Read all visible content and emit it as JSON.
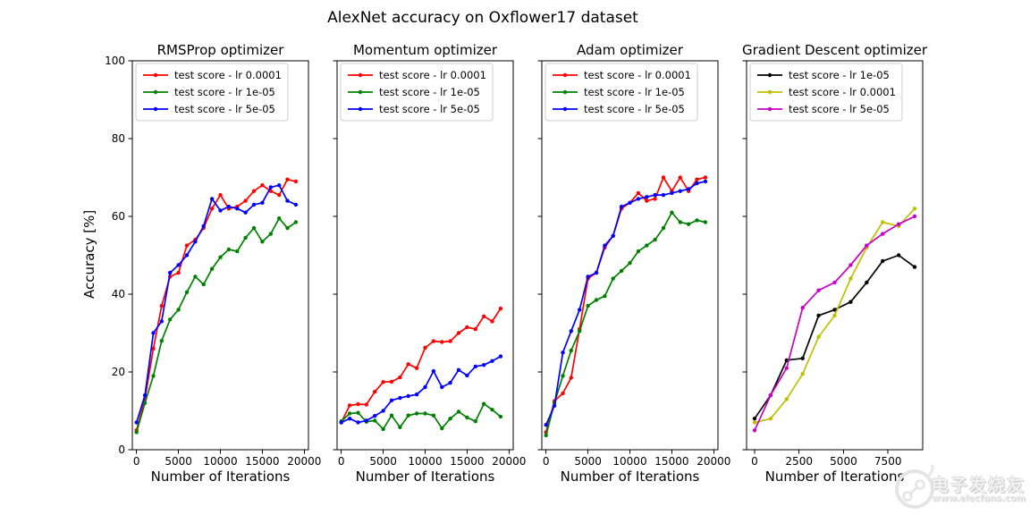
{
  "figure": {
    "title": "AlexNet accuracy on Oxflower17 dataset",
    "ylabel": "Accuracy [%]",
    "watermark": {
      "brand": "电子发烧友",
      "url": "www.elecfans.com"
    }
  },
  "chart_data": [
    {
      "type": "line",
      "title": "RMSProp optimizer",
      "xlabel": "Number of Iterations",
      "ylabel": "Accuracy [%]",
      "xlim": [
        -500,
        20500
      ],
      "ylim": [
        0,
        100
      ],
      "xticks": [
        0,
        5000,
        10000,
        15000,
        20000
      ],
      "yticks": [
        0,
        20,
        40,
        60,
        80,
        100
      ],
      "show_ytick_labels": true,
      "legend_position": "upper-left",
      "grid": false,
      "x": [
        0,
        1000,
        2000,
        3000,
        4000,
        5000,
        6000,
        7000,
        8000,
        9000,
        10000,
        11000,
        12000,
        13000,
        14000,
        15000,
        16000,
        17000,
        18000,
        19000
      ],
      "series": [
        {
          "name": "test score - lr 0.0001",
          "color": "#ff0000",
          "values": [
            5,
            13,
            26,
            37,
            44.5,
            45.5,
            52.5,
            54,
            57,
            62,
            65.5,
            62,
            62.5,
            64,
            66.5,
            68,
            66.5,
            65.5,
            69.5,
            69
          ]
        },
        {
          "name": "test score - lr 1e-05",
          "color": "#008000",
          "values": [
            4.5,
            12,
            19,
            28,
            33.5,
            36,
            40.5,
            44.5,
            42.5,
            46.5,
            49.5,
            51.5,
            51,
            54.5,
            57,
            53.5,
            55.5,
            59.5,
            57,
            58.5
          ]
        },
        {
          "name": "test score - lr 5e-05",
          "color": "#0000ff",
          "values": [
            7,
            14,
            30,
            33,
            45.5,
            47.5,
            50,
            53.5,
            57.5,
            64.5,
            61.5,
            62.5,
            62,
            61,
            63,
            63.5,
            67.5,
            68,
            64,
            63
          ]
        }
      ]
    },
    {
      "type": "line",
      "title": "Momentum optimizer",
      "xlabel": "Number of Iterations",
      "ylabel": "Accuracy [%]",
      "xlim": [
        -500,
        20500
      ],
      "ylim": [
        0,
        100
      ],
      "xticks": [
        0,
        5000,
        10000,
        15000,
        20000
      ],
      "yticks": [
        0,
        20,
        40,
        60,
        80,
        100
      ],
      "show_ytick_labels": false,
      "legend_position": "upper-left",
      "grid": false,
      "x": [
        0,
        1000,
        2000,
        3000,
        4000,
        5000,
        6000,
        7000,
        8000,
        9000,
        10000,
        11000,
        12000,
        13000,
        14000,
        15000,
        16000,
        17000,
        18000,
        19000
      ],
      "series": [
        {
          "name": "test score - lr 0.0001",
          "color": "#ff0000",
          "values": [
            7,
            11.4,
            11.7,
            11.6,
            14.9,
            17.4,
            17.5,
            18.6,
            22,
            21,
            26.2,
            27.9,
            27.7,
            27.9,
            30,
            31.5,
            31,
            34.3,
            33,
            36.3
          ]
        },
        {
          "name": "test score - lr 1e-05",
          "color": "#008000",
          "values": [
            7.3,
            9.3,
            9.5,
            7.2,
            7.5,
            5.3,
            8.8,
            5.8,
            8.8,
            9.3,
            9.3,
            8.8,
            5.5,
            8,
            9.8,
            8.3,
            7.3,
            11.8,
            10.3,
            8.5
          ]
        },
        {
          "name": "test score - lr 5e-05",
          "color": "#0000ff",
          "values": [
            7,
            8,
            7,
            7.5,
            8.7,
            10,
            12.7,
            13.3,
            13.8,
            14.2,
            16.1,
            20.2,
            16.1,
            17.2,
            20.5,
            19.1,
            21.4,
            21.8,
            22.8,
            24
          ]
        }
      ]
    },
    {
      "type": "line",
      "title": "Adam optimizer",
      "xlabel": "Number of Iterations",
      "ylabel": "Accuracy [%]",
      "xlim": [
        -500,
        20500
      ],
      "ylim": [
        0,
        100
      ],
      "xticks": [
        0,
        5000,
        10000,
        15000,
        20000
      ],
      "yticks": [
        0,
        20,
        40,
        60,
        80,
        100
      ],
      "show_ytick_labels": false,
      "legend_position": "upper-left",
      "grid": false,
      "x": [
        0,
        1000,
        2000,
        3000,
        4000,
        5000,
        6000,
        7000,
        8000,
        9000,
        10000,
        11000,
        12000,
        13000,
        14000,
        15000,
        16000,
        17000,
        18000,
        19000
      ],
      "series": [
        {
          "name": "test score - lr 0.0001",
          "color": "#ff0000",
          "values": [
            4.5,
            12.5,
            14.5,
            18.5,
            31,
            44,
            45.5,
            52,
            55,
            62,
            63.5,
            66,
            64,
            64.5,
            70,
            66.5,
            70,
            66.5,
            69.5,
            70
          ]
        },
        {
          "name": "test score - lr 1e-05",
          "color": "#008000",
          "values": [
            3.7,
            12,
            19,
            25.5,
            30.5,
            37,
            38.5,
            39.5,
            44,
            46,
            48,
            51,
            52.5,
            54,
            57,
            61,
            58.5,
            58,
            59,
            58.5
          ]
        },
        {
          "name": "test score - lr 5e-05",
          "color": "#0000ff",
          "values": [
            6.4,
            11.3,
            25,
            30.5,
            36,
            44.5,
            45.5,
            52.5,
            55,
            62.5,
            63.5,
            64.5,
            65,
            65.5,
            65.5,
            66,
            66.5,
            67,
            68.5,
            69
          ]
        }
      ]
    },
    {
      "type": "line",
      "title": "Gradient Descent optimizer",
      "xlabel": "Number of Iterations",
      "ylabel": "Accuracy [%]",
      "xlim": [
        -450,
        9450
      ],
      "ylim": [
        0,
        100
      ],
      "xticks": [
        0,
        2500,
        5000,
        7500
      ],
      "yticks": [
        0,
        20,
        40,
        60,
        80,
        100
      ],
      "show_ytick_labels": false,
      "legend_position": "upper-left",
      "grid": false,
      "x": [
        0,
        900,
        1800,
        2700,
        3600,
        4500,
        5400,
        6300,
        7200,
        8100,
        9000
      ],
      "series": [
        {
          "name": "test score - lr 1e-05",
          "color": "#000000",
          "values": [
            8,
            14,
            23,
            23.5,
            34.5,
            36,
            38,
            43,
            48.5,
            50,
            47
          ]
        },
        {
          "name": "test score - lr 0.0001",
          "color": "#bfbf00",
          "values": [
            7,
            8,
            13,
            19.5,
            29,
            34.5,
            44,
            52,
            58.5,
            57.5,
            62
          ]
        },
        {
          "name": "test score - lr 5e-05",
          "color": "#c800c8",
          "values": [
            5,
            14,
            21,
            36.5,
            41,
            43,
            47.5,
            52.5,
            55.5,
            58,
            60
          ]
        }
      ]
    }
  ]
}
